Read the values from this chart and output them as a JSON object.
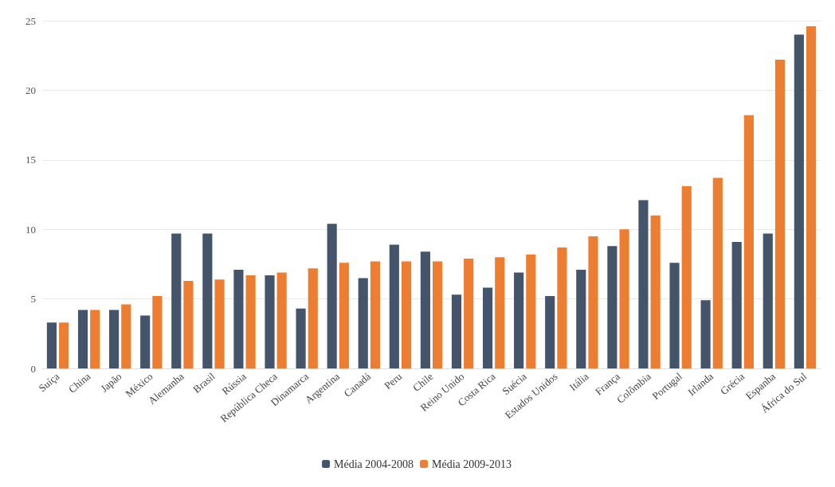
{
  "chart_data": {
    "type": "bar",
    "categories": [
      "Suíça",
      "China",
      "Japão",
      "México",
      "Alemanha",
      "Brasil",
      "Rússia",
      "República Checa",
      "Dinamarca",
      "Argentina",
      "Canadá",
      "Peru",
      "Chile",
      "Reino Unido",
      "Costa Rica",
      "Suécia",
      "Estados Unidos",
      "Itália",
      "França",
      "Colômbia",
      "Portugal",
      "Irlanda",
      "Grécia",
      "Espanha",
      "África do Sul"
    ],
    "series": [
      {
        "name": "Média 2004-2008",
        "color": "#44546a",
        "values": [
          3.3,
          4.2,
          4.2,
          3.8,
          9.7,
          9.7,
          7.1,
          6.7,
          4.3,
          10.4,
          6.5,
          8.9,
          8.4,
          5.3,
          5.8,
          6.9,
          5.2,
          7.1,
          8.8,
          12.1,
          7.6,
          4.9,
          9.1,
          9.7,
          24.0
        ]
      },
      {
        "name": "Média 2009-2013",
        "color": "#ed7d31",
        "values": [
          3.3,
          4.2,
          4.6,
          5.2,
          6.3,
          6.4,
          6.7,
          6.9,
          7.2,
          7.6,
          7.7,
          7.7,
          7.7,
          7.9,
          8.0,
          8.2,
          8.7,
          9.5,
          10.0,
          11.0,
          13.1,
          13.7,
          18.2,
          22.2,
          24.6
        ]
      }
    ],
    "ylim": [
      0,
      25
    ],
    "yticks": [
      0,
      5,
      10,
      15,
      20,
      25
    ],
    "grid": "y",
    "legend": "bottom"
  }
}
